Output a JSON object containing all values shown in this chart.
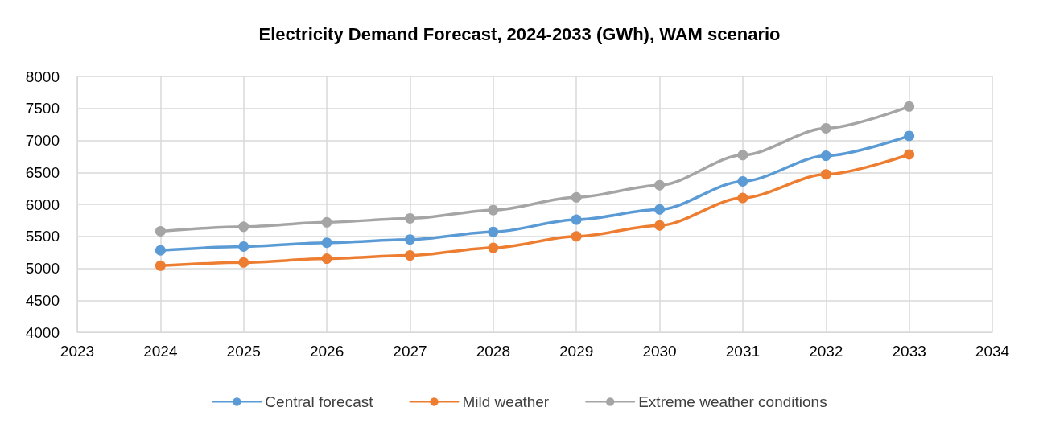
{
  "chart_data": {
    "type": "line",
    "title": "Electricity Demand Forecast, 2024-2033 (GWh), WAM scenario",
    "x": [
      2024,
      2025,
      2026,
      2027,
      2028,
      2029,
      2030,
      2031,
      2032,
      2033
    ],
    "series": [
      {
        "name": "Central forecast",
        "color": "#5b9bd5",
        "values": [
          5280,
          5340,
          5400,
          5450,
          5570,
          5760,
          5920,
          6360,
          6760,
          7070
        ]
      },
      {
        "name": "Mild weather",
        "color": "#ed7d31",
        "values": [
          5040,
          5090,
          5150,
          5200,
          5320,
          5500,
          5670,
          6100,
          6470,
          6780
        ]
      },
      {
        "name": "Extreme weather conditions",
        "color": "#a5a5a5",
        "values": [
          5580,
          5650,
          5720,
          5780,
          5910,
          6110,
          6300,
          6770,
          7190,
          7530
        ]
      }
    ],
    "xlim": [
      2023,
      2034
    ],
    "xticks": [
      2023,
      2024,
      2025,
      2026,
      2027,
      2028,
      2029,
      2030,
      2031,
      2032,
      2033,
      2034
    ],
    "ylim": [
      4000,
      8000
    ],
    "yticks": [
      4000,
      4500,
      5000,
      5500,
      6000,
      6500,
      7000,
      7500,
      8000
    ],
    "grid": true,
    "legend": "bottom",
    "marker": "circle",
    "line_style": "solid"
  }
}
